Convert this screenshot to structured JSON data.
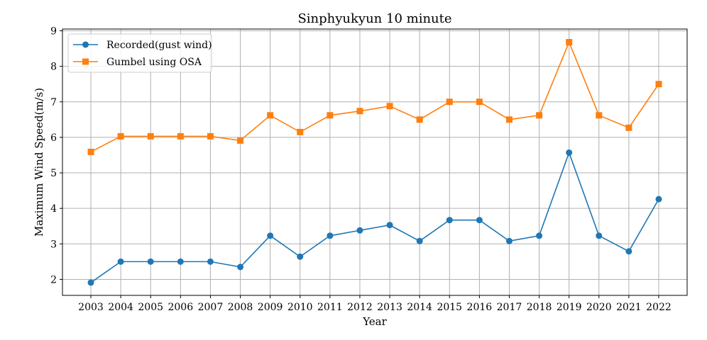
{
  "chart_data": {
    "type": "line",
    "title": "Sinphyukyun 10 minute",
    "xlabel": "Year",
    "ylabel": "Maximum Wind Speed(m/s)",
    "x": [
      "2003",
      "2004",
      "2005",
      "2006",
      "2007",
      "2008",
      "2009",
      "2010",
      "2011",
      "2012",
      "2013",
      "2014",
      "2015",
      "2016",
      "2017",
      "2018",
      "2019",
      "2020",
      "2021",
      "2022"
    ],
    "yticks": [
      2,
      3,
      4,
      5,
      6,
      7,
      8,
      9
    ],
    "ylim": [
      1.55,
      9.05
    ],
    "grid": true,
    "legend_position": "top-left",
    "series": [
      {
        "name": "Recorded(gust wind)",
        "color": "#1f77b4",
        "marker": "circle",
        "values": [
          1.91,
          2.5,
          2.5,
          2.5,
          2.5,
          2.35,
          3.23,
          2.64,
          3.23,
          3.38,
          3.53,
          3.08,
          3.67,
          3.67,
          3.08,
          3.23,
          5.57,
          3.23,
          2.79,
          4.26
        ]
      },
      {
        "name": "Gumbel using OSA",
        "color": "#ff7f0e",
        "marker": "square",
        "values": [
          5.59,
          6.03,
          6.03,
          6.03,
          6.03,
          5.91,
          6.62,
          6.15,
          6.62,
          6.74,
          6.88,
          6.5,
          7.0,
          7.0,
          6.5,
          6.62,
          8.68,
          6.62,
          6.27,
          7.5
        ]
      }
    ]
  }
}
